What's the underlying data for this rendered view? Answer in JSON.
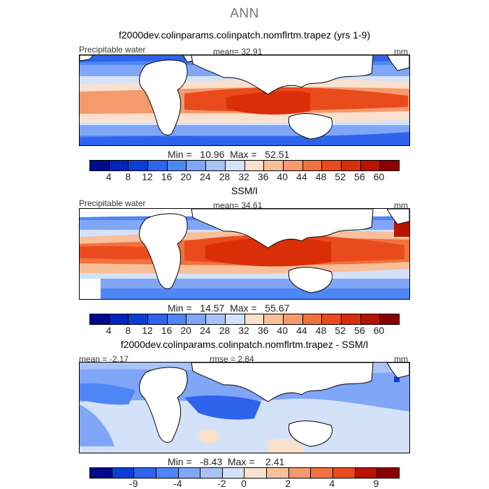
{
  "figure": {
    "title": "ANN",
    "panels": [
      {
        "id": "model",
        "title": "f2000dev.colinparams.colinpatch.nomflrtm.trapez (yrs 1-9)",
        "field_label": "Precipitable water",
        "stat_text": "mean=   32.91",
        "units": "mm",
        "minmax_text": "Min =   10.96  Max =   52.51"
      },
      {
        "id": "obs",
        "title": "SSM/I",
        "field_label": "Precipitable water",
        "stat_text": "mean=   34.61",
        "units": "mm",
        "minmax_text": "Min =   14.57  Max =   55.67"
      },
      {
        "id": "diff",
        "title": "f2000dev.colinparams.colinpatch.nomflrtm.trapez - SSM/I",
        "field_label": "mean =   -2.17",
        "stat_text": "rmse =    2.84",
        "units": "mm",
        "minmax_text": "Min =   -8.43  Max =    2.41"
      }
    ],
    "colorbar_abs": {
      "colors": [
        "#000a8c",
        "#0024c0",
        "#0a3ed8",
        "#2e63eb",
        "#4f86f6",
        "#7fa6f7",
        "#a8c3f6",
        "#d4e2f9",
        "#fbe0cd",
        "#f8bf9a",
        "#f49a6d",
        "#f07240",
        "#ea4b1d",
        "#da2e09",
        "#b81401",
        "#8a0000"
      ],
      "tick_values": [
        "4",
        "8",
        "12",
        "16",
        "20",
        "24",
        "28",
        "32",
        "36",
        "40",
        "44",
        "48",
        "52",
        "56",
        "60"
      ]
    },
    "colorbar_diff": {
      "colors": [
        "#000a8c",
        "#0a3ed8",
        "#2e63eb",
        "#4f86f6",
        "#7fa6f7",
        "#a8c3f6",
        "#d4e2f9",
        "#fbe0cd",
        "#f8bf9a",
        "#f49a6d",
        "#f07240",
        "#ea4b1d",
        "#b81401",
        "#8a0000"
      ],
      "tick_values": [
        "-9",
        "-4",
        "-2",
        "0",
        "2",
        "4",
        "9"
      ]
    }
  }
}
